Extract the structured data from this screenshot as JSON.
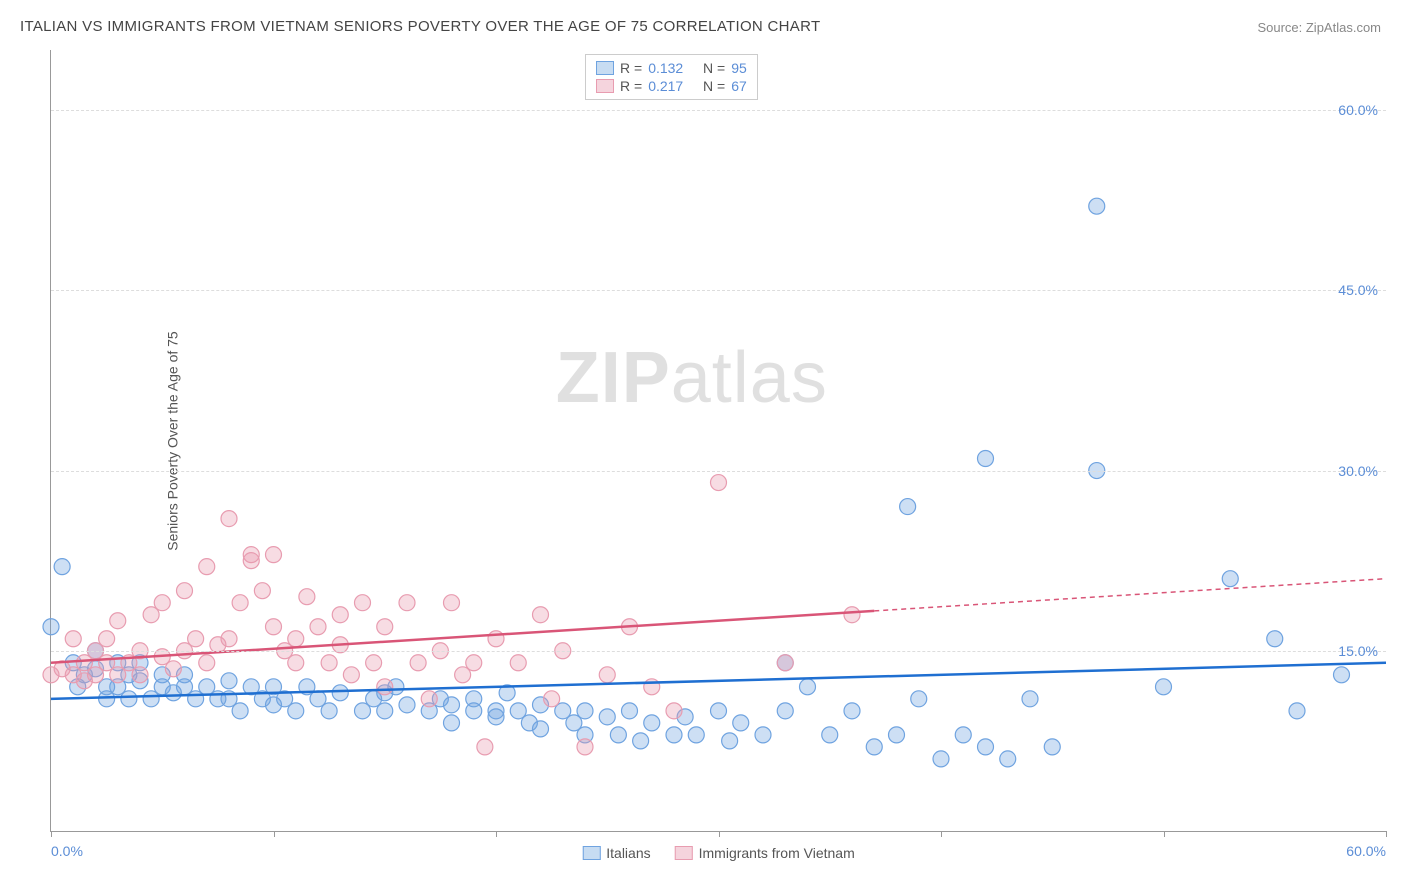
{
  "title": "ITALIAN VS IMMIGRANTS FROM VIETNAM SENIORS POVERTY OVER THE AGE OF 75 CORRELATION CHART",
  "source": "Source: ZipAtlas.com",
  "y_axis_label": "Seniors Poverty Over the Age of 75",
  "watermark": {
    "bold": "ZIP",
    "light": "atlas"
  },
  "chart": {
    "type": "scatter",
    "xlim": [
      0,
      60
    ],
    "ylim": [
      0,
      65
    ],
    "x_ticks": [
      0,
      10,
      20,
      30,
      40,
      50,
      60
    ],
    "x_tick_labels": {
      "0": "0.0%",
      "60": "60.0%"
    },
    "y_ticks": [
      15,
      30,
      45,
      60
    ],
    "y_tick_labels": [
      "15.0%",
      "30.0%",
      "45.0%",
      "60.0%"
    ],
    "background_color": "#ffffff",
    "grid_color": "#dddddd",
    "axis_color": "#999999",
    "tick_label_color": "#5b8dd6",
    "marker_radius": 8,
    "marker_fill_opacity": 0.35,
    "marker_stroke_width": 1.2,
    "series": [
      {
        "name": "Italians",
        "color": "#6fa3e0",
        "line_color": "#1f6fd1",
        "r": 0.132,
        "n": 95,
        "trend": {
          "y_at_x0": 11.0,
          "y_at_xmax": 14.0,
          "solid_until_x": 60
        },
        "points": [
          [
            0,
            17
          ],
          [
            0.5,
            22
          ],
          [
            1,
            14
          ],
          [
            1.2,
            12
          ],
          [
            1.5,
            13
          ],
          [
            2,
            13.5
          ],
          [
            2,
            15
          ],
          [
            2.5,
            12
          ],
          [
            2.5,
            11
          ],
          [
            3,
            14
          ],
          [
            3,
            12
          ],
          [
            3.5,
            11
          ],
          [
            3.5,
            13
          ],
          [
            4,
            14
          ],
          [
            4,
            12.5
          ],
          [
            4.5,
            11
          ],
          [
            5,
            13
          ],
          [
            5,
            12
          ],
          [
            5.5,
            11.5
          ],
          [
            6,
            13
          ],
          [
            6,
            12
          ],
          [
            6.5,
            11
          ],
          [
            7,
            12
          ],
          [
            7.5,
            11
          ],
          [
            8,
            12.5
          ],
          [
            8,
            11
          ],
          [
            8.5,
            10
          ],
          [
            9,
            12
          ],
          [
            9.5,
            11
          ],
          [
            10,
            12
          ],
          [
            10,
            10.5
          ],
          [
            10.5,
            11
          ],
          [
            11,
            10
          ],
          [
            11.5,
            12
          ],
          [
            12,
            11
          ],
          [
            12.5,
            10
          ],
          [
            13,
            11.5
          ],
          [
            14,
            10
          ],
          [
            14.5,
            11
          ],
          [
            15,
            10
          ],
          [
            15,
            11.5
          ],
          [
            15.5,
            12
          ],
          [
            16,
            10.5
          ],
          [
            17,
            10
          ],
          [
            17.5,
            11
          ],
          [
            18,
            10.5
          ],
          [
            18,
            9
          ],
          [
            19,
            10
          ],
          [
            19,
            11
          ],
          [
            20,
            9.5
          ],
          [
            20,
            10
          ],
          [
            20.5,
            11.5
          ],
          [
            21,
            10
          ],
          [
            21.5,
            9
          ],
          [
            22,
            10.5
          ],
          [
            22,
            8.5
          ],
          [
            23,
            10
          ],
          [
            23.5,
            9
          ],
          [
            24,
            8
          ],
          [
            24,
            10
          ],
          [
            25,
            9.5
          ],
          [
            25.5,
            8
          ],
          [
            26,
            10
          ],
          [
            26.5,
            7.5
          ],
          [
            27,
            9
          ],
          [
            28,
            8
          ],
          [
            28.5,
            9.5
          ],
          [
            29,
            8
          ],
          [
            30,
            10
          ],
          [
            30.5,
            7.5
          ],
          [
            31,
            9
          ],
          [
            32,
            8
          ],
          [
            33,
            14
          ],
          [
            33,
            10
          ],
          [
            34,
            12
          ],
          [
            35,
            8
          ],
          [
            36,
            10
          ],
          [
            37,
            7
          ],
          [
            38,
            8
          ],
          [
            38.5,
            27
          ],
          [
            39,
            11
          ],
          [
            40,
            6
          ],
          [
            41,
            8
          ],
          [
            42,
            31
          ],
          [
            42,
            7
          ],
          [
            43,
            6
          ],
          [
            44,
            11
          ],
          [
            45,
            7
          ],
          [
            47,
            30
          ],
          [
            47,
            52
          ],
          [
            50,
            12
          ],
          [
            53,
            21
          ],
          [
            55,
            16
          ],
          [
            56,
            10
          ],
          [
            58,
            13
          ]
        ]
      },
      {
        "name": "Immigrants from Vietnam",
        "color": "#e89cb0",
        "line_color": "#d95577",
        "r": 0.217,
        "n": 67,
        "trend": {
          "y_at_x0": 14.0,
          "y_at_xmax": 21.0,
          "solid_until_x": 37
        },
        "points": [
          [
            0,
            13
          ],
          [
            0.5,
            13.5
          ],
          [
            1,
            13
          ],
          [
            1,
            16
          ],
          [
            1.5,
            12.5
          ],
          [
            1.5,
            14
          ],
          [
            2,
            15
          ],
          [
            2,
            13
          ],
          [
            2.5,
            14
          ],
          [
            2.5,
            16
          ],
          [
            3,
            13
          ],
          [
            3,
            17.5
          ],
          [
            3.5,
            14
          ],
          [
            4,
            15
          ],
          [
            4,
            13
          ],
          [
            4.5,
            18
          ],
          [
            5,
            14.5
          ],
          [
            5,
            19
          ],
          [
            5.5,
            13.5
          ],
          [
            6,
            20
          ],
          [
            6,
            15
          ],
          [
            6.5,
            16
          ],
          [
            7,
            22
          ],
          [
            7,
            14
          ],
          [
            7.5,
            15.5
          ],
          [
            8,
            16
          ],
          [
            8,
            26
          ],
          [
            8.5,
            19
          ],
          [
            9,
            23
          ],
          [
            9,
            22.5
          ],
          [
            9.5,
            20
          ],
          [
            10,
            17
          ],
          [
            10,
            23
          ],
          [
            10.5,
            15
          ],
          [
            11,
            16
          ],
          [
            11,
            14
          ],
          [
            11.5,
            19.5
          ],
          [
            12,
            17
          ],
          [
            12.5,
            14
          ],
          [
            13,
            15.5
          ],
          [
            13,
            18
          ],
          [
            13.5,
            13
          ],
          [
            14,
            19
          ],
          [
            14.5,
            14
          ],
          [
            15,
            17
          ],
          [
            15,
            12
          ],
          [
            16,
            19
          ],
          [
            16.5,
            14
          ],
          [
            17,
            11
          ],
          [
            17.5,
            15
          ],
          [
            18,
            19
          ],
          [
            18.5,
            13
          ],
          [
            19,
            14
          ],
          [
            19.5,
            7
          ],
          [
            20,
            16
          ],
          [
            21,
            14
          ],
          [
            22,
            18
          ],
          [
            22.5,
            11
          ],
          [
            23,
            15
          ],
          [
            24,
            7
          ],
          [
            25,
            13
          ],
          [
            26,
            17
          ],
          [
            27,
            12
          ],
          [
            28,
            10
          ],
          [
            30,
            29
          ],
          [
            33,
            14
          ],
          [
            36,
            18
          ]
        ]
      }
    ]
  },
  "legend_top": [
    {
      "swatch_fill": "#c7dcf2",
      "swatch_border": "#6fa3e0",
      "r_label": "R =",
      "r_value": "0.132",
      "n_label": "N =",
      "n_value": "95"
    },
    {
      "swatch_fill": "#f5d4dd",
      "swatch_border": "#e89cb0",
      "r_label": "R =",
      "r_value": "0.217",
      "n_label": "N =",
      "n_value": "67"
    }
  ],
  "legend_bottom": [
    {
      "swatch_fill": "#c7dcf2",
      "swatch_border": "#6fa3e0",
      "label": "Italians"
    },
    {
      "swatch_fill": "#f5d4dd",
      "swatch_border": "#e89cb0",
      "label": "Immigrants from Vietnam"
    }
  ]
}
